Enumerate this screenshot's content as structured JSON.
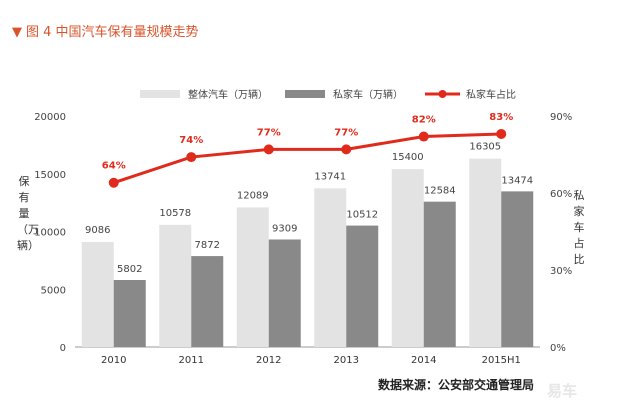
{
  "figure": {
    "title_marker": "▼",
    "title": "图 4  中国汽车保有量规模走势",
    "source": "数据来源：公安部交通管理局",
    "watermark": "易车"
  },
  "chart_data": {
    "type": "bar+line",
    "categories": [
      "2010",
      "2011",
      "2012",
      "2013",
      "2014",
      "2015H1"
    ],
    "series": [
      {
        "name": "整体汽车（万辆）",
        "type": "bar",
        "axis": "left",
        "color": "#e3e3e3",
        "values": [
          9086,
          10578,
          12089,
          13741,
          15400,
          16305
        ]
      },
      {
        "name": "私家车（万辆）",
        "type": "bar",
        "axis": "left",
        "color": "#898989",
        "values": [
          5802,
          7872,
          9309,
          10512,
          12584,
          13474
        ]
      },
      {
        "name": "私家车占比",
        "type": "line",
        "axis": "right",
        "color": "#e02a1b",
        "values": [
          64,
          74,
          77,
          77,
          82,
          83
        ],
        "labels": [
          "64%",
          "74%",
          "77%",
          "77%",
          "82%",
          "83%"
        ]
      }
    ],
    "ylabel_left": "保有量（万辆）",
    "ylabel_right": "私家车占比",
    "ylim_left": [
      0,
      20000
    ],
    "yticks_left": [
      "0",
      "5000",
      "10000",
      "15000",
      "20000"
    ],
    "ylim_right": [
      0,
      90
    ],
    "yticks_right": [
      "0%",
      "30%",
      "60%",
      "90%"
    ],
    "grid": false,
    "legend_position": "top"
  }
}
